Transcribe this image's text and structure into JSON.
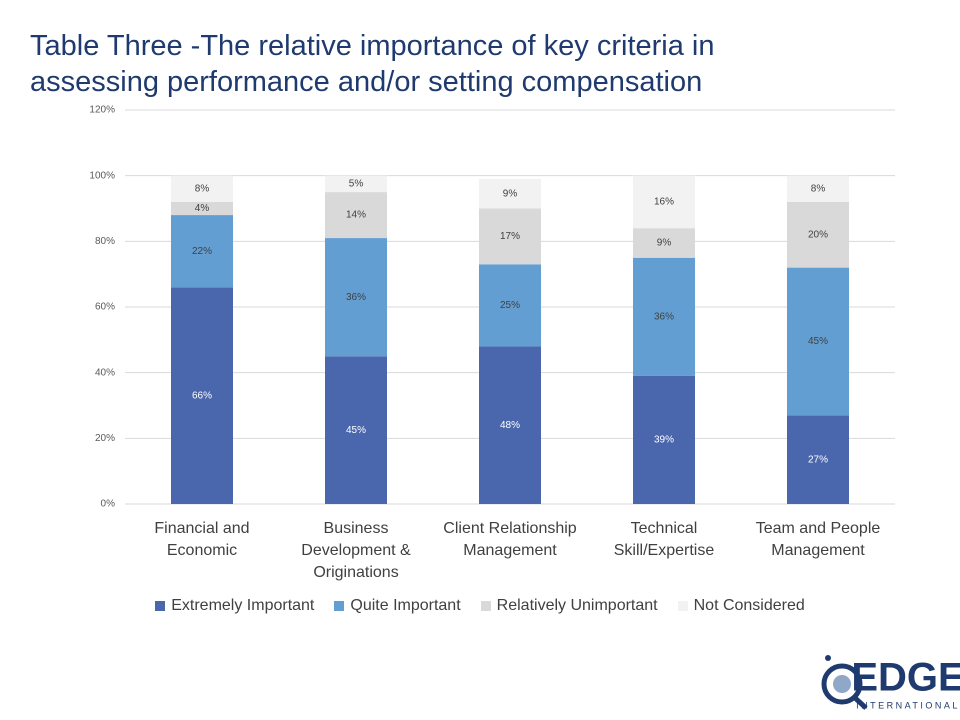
{
  "chart_data": {
    "type": "stacked_bar",
    "title": "Table Three -The relative importance of key criteria in assessing performance and/or setting compensation",
    "categories": [
      "Financial and Economic",
      "Business Development & Originations",
      "Client Relationship Management",
      "Technical Skill/Expertise",
      "Team and People Management"
    ],
    "series": [
      {
        "name": "Extremely Important",
        "color": "#4a66ac",
        "values": [
          66,
          45,
          48,
          39,
          27
        ],
        "value_labels": [
          "66%",
          "45%",
          "48%",
          "39%",
          "27%"
        ]
      },
      {
        "name": "Quite Important",
        "color": "#639ed3",
        "values": [
          22,
          36,
          25,
          36,
          45
        ],
        "value_labels": [
          "22%",
          "36%",
          "25%",
          "36%",
          "45%"
        ]
      },
      {
        "name": "Relatively Unimportant",
        "color": "#d9d9d9",
        "values": [
          4,
          14,
          17,
          9,
          20
        ],
        "value_labels": [
          "4%",
          "14%",
          "17%",
          "9%",
          "20%"
        ]
      },
      {
        "name": "Not Considered",
        "color": "#f2f2f2",
        "values": [
          8,
          5,
          9,
          16,
          8
        ],
        "value_labels": [
          "8%",
          "5%",
          "9%",
          "16%",
          "8%"
        ]
      }
    ],
    "ylim": [
      0,
      120
    ],
    "yticks": [
      {
        "value": 0,
        "label": "0%"
      },
      {
        "value": 20,
        "label": "20%"
      },
      {
        "value": 40,
        "label": "40%"
      },
      {
        "value": 60,
        "label": "60%"
      },
      {
        "value": 80,
        "label": "80%"
      },
      {
        "value": 100,
        "label": "100%"
      },
      {
        "value": 120,
        "label": "120%"
      }
    ],
    "grid": true,
    "legend": "bottom"
  },
  "logo": {
    "name": "EDGE",
    "tagline": "INTERNATIONAL"
  }
}
